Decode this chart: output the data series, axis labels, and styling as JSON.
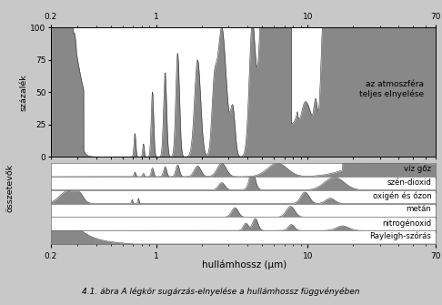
{
  "title_caption": "4.1. ábra A légkör sugárzás-elnyelése a hullámhossz függvényében",
  "xlabel": "hullámhossz (μm)",
  "ylabel_top": "százalék",
  "ylabel_bottom": "összetevők",
  "xlim": [
    0.2,
    70
  ],
  "top_yticks": [
    0,
    25,
    50,
    75,
    100
  ],
  "top_annotation": "az atmoszféra\nteljes elnyelése",
  "component_labels": [
    "víz gőz",
    "szén-dioxid",
    "oxigén és ózon",
    "metán",
    "nitrogénoxid",
    "Rayleigh-szórás"
  ],
  "fill_color": "#888888",
  "bg_color": "#c8c8c8",
  "line_color": "#000000",
  "font_size_labels": 7.0,
  "font_size_caption": 7.0
}
